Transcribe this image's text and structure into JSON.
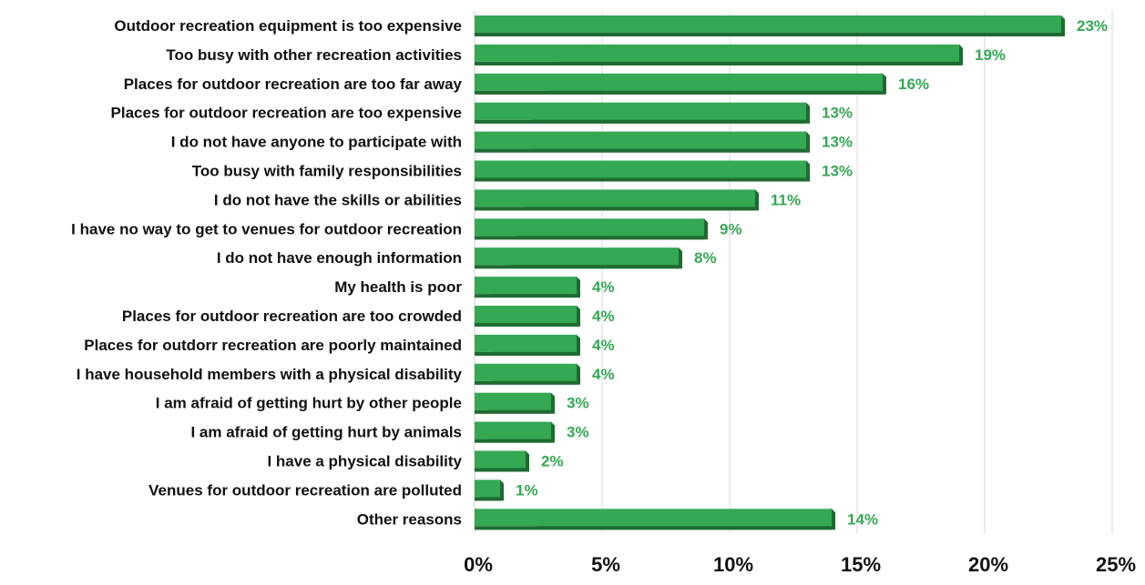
{
  "chart_data": {
    "type": "bar",
    "orientation": "horizontal",
    "categories": [
      "Outdoor recreation equipment is too expensive",
      "Too busy with other recreation activities",
      "Places for outdoor recreation are too far away",
      "Places for outdoor recreation are too expensive",
      "I do not have anyone to participate with",
      "Too busy with family responsibilities",
      "I do not have the skills or abilities",
      "I have no way to get to venues for outdoor recreation",
      "I do not have enough information",
      "My health is poor",
      "Places for outdoor recreation are too crowded",
      "Places for outdorr recreation are poorly maintained",
      "I have household members with a physical disability",
      "I am afraid of getting hurt by other people",
      "I am afraid of getting hurt by animals",
      "I have a physical disability",
      "Venues for outdoor recreation are polluted",
      "Other reasons"
    ],
    "values": [
      23,
      19,
      16,
      13,
      13,
      13,
      11,
      9,
      8,
      4,
      4,
      4,
      4,
      3,
      3,
      2,
      1,
      14
    ],
    "value_labels": [
      "23%",
      "19%",
      "16%",
      "13%",
      "13%",
      "13%",
      "11%",
      "9%",
      "8%",
      "4%",
      "4%",
      "4%",
      "4%",
      "3%",
      "3%",
      "2%",
      "1%",
      "14%"
    ],
    "xlim": [
      0,
      25
    ],
    "x_ticks": [
      0,
      5,
      10,
      15,
      20,
      25
    ],
    "x_tick_labels": [
      "0%",
      "5%",
      "10%",
      "15%",
      "20%",
      "25%"
    ],
    "grid": "vertical",
    "colors": {
      "bar": "#34a853",
      "bar_shadow": "#1e6b31",
      "value_label": "#34a853",
      "grid": "#d9d9d9"
    }
  }
}
